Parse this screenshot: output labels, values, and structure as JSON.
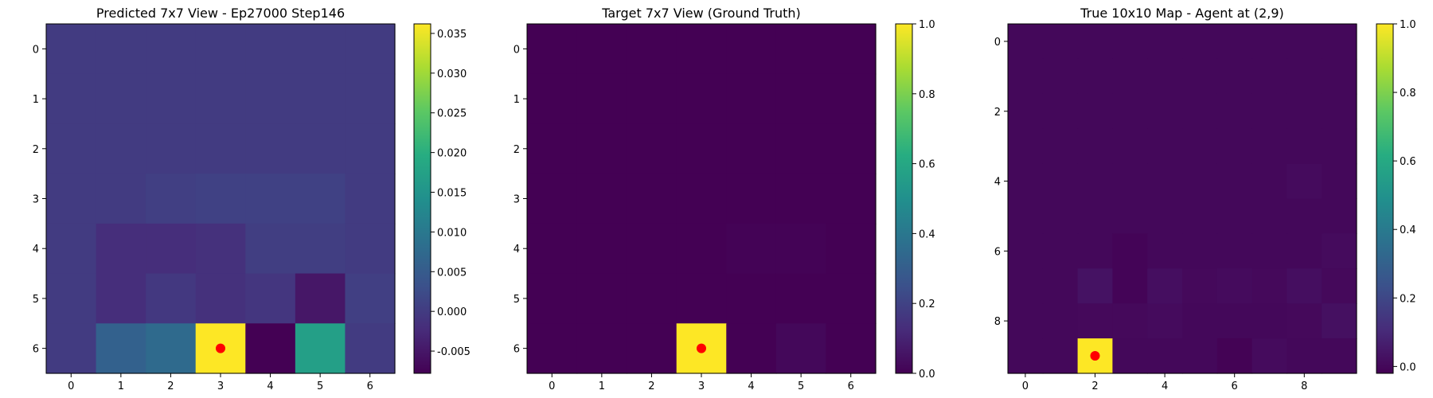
{
  "chart_data": [
    {
      "type": "heatmap",
      "title": "Predicted 7x7 View - Ep27000 Step146",
      "xlabel": "",
      "ylabel": "",
      "size": 7,
      "x_ticks": [
        0,
        1,
        2,
        3,
        4,
        5,
        6
      ],
      "y_ticks": [
        0,
        1,
        2,
        3,
        4,
        5,
        6
      ],
      "colormap": "viridis",
      "vmin": -0.0078,
      "vmax": 0.0362,
      "colorbar_ticks": [
        "-0.005",
        "0.000",
        "0.005",
        "0.010",
        "0.015",
        "0.020",
        "0.025",
        "0.030",
        "0.035"
      ],
      "colorbar_tick_values": [
        -0.005,
        0.0,
        0.005,
        0.01,
        0.015,
        0.02,
        0.025,
        0.03,
        0.035
      ],
      "values": [
        [
          0.0,
          0.0,
          0.0,
          0.0,
          0.0,
          0.0,
          0.0
        ],
        [
          0.0,
          0.0,
          0.0,
          0.0,
          0.0,
          0.0,
          0.0
        ],
        [
          0.0,
          0.0,
          0.0,
          0.0,
          0.0,
          0.0,
          0.0
        ],
        [
          0.0,
          0.0,
          0.0005,
          0.0008,
          0.0008,
          0.0008,
          0.0
        ],
        [
          0.0,
          -0.002,
          -0.002,
          -0.0015,
          0.0004,
          0.0004,
          0.0
        ],
        [
          0.0,
          -0.002,
          -0.0005,
          -0.0015,
          -0.0008,
          -0.005,
          0.0005
        ],
        [
          0.0,
          0.006,
          0.0075,
          0.0362,
          -0.0078,
          0.017,
          0.0
        ]
      ],
      "marker": {
        "x": 3,
        "y": 6,
        "color": "#ff0000"
      }
    },
    {
      "type": "heatmap",
      "title": "Target 7x7 View (Ground Truth)",
      "xlabel": "",
      "ylabel": "",
      "size": 7,
      "x_ticks": [
        0,
        1,
        2,
        3,
        4,
        5,
        6
      ],
      "y_ticks": [
        0,
        1,
        2,
        3,
        4,
        5,
        6
      ],
      "colormap": "viridis",
      "vmin": 0.0,
      "vmax": 1.0,
      "colorbar_ticks": [
        "0.0",
        "0.2",
        "0.4",
        "0.6",
        "0.8",
        "1.0"
      ],
      "colorbar_tick_values": [
        0.0,
        0.2,
        0.4,
        0.6,
        0.8,
        1.0
      ],
      "values": [
        [
          0,
          0,
          0,
          0,
          0,
          0,
          0
        ],
        [
          0,
          0,
          0,
          0,
          0,
          0,
          0
        ],
        [
          0,
          0,
          0,
          0,
          0,
          0,
          0
        ],
        [
          0,
          0,
          0,
          0,
          0,
          0,
          0
        ],
        [
          0,
          0,
          0,
          0,
          0.005,
          0.005,
          0
        ],
        [
          0,
          0,
          0,
          0,
          0,
          0,
          0
        ],
        [
          0,
          0,
          0,
          1.0,
          0,
          0.02,
          0
        ]
      ],
      "marker": {
        "x": 3,
        "y": 6,
        "color": "#ff0000"
      }
    },
    {
      "type": "heatmap",
      "title": "True 10x10 Map - Agent at (2,9)",
      "xlabel": "",
      "ylabel": "",
      "size": 10,
      "x_ticks": [
        0,
        2,
        4,
        6,
        8
      ],
      "y_ticks": [
        0,
        2,
        4,
        6,
        8
      ],
      "colormap": "viridis",
      "vmin": -0.02,
      "vmax": 1.0,
      "colorbar_ticks": [
        "0.0",
        "0.2",
        "0.4",
        "0.6",
        "0.8",
        "1.0"
      ],
      "colorbar_tick_values": [
        0.0,
        0.2,
        0.4,
        0.6,
        0.8,
        1.0
      ],
      "values": [
        [
          0,
          0,
          0,
          0,
          0,
          0,
          0,
          0,
          0,
          0
        ],
        [
          0,
          0,
          0,
          0,
          0,
          0,
          0,
          0,
          0,
          0
        ],
        [
          0,
          0,
          0,
          0,
          0,
          0,
          0,
          0,
          0,
          0
        ],
        [
          0,
          0,
          0,
          0,
          0,
          0,
          0,
          0,
          0,
          0
        ],
        [
          0,
          0,
          0,
          0,
          0,
          0,
          0,
          0,
          0.01,
          0
        ],
        [
          0,
          0,
          0,
          0,
          0,
          0,
          0,
          0,
          0,
          0
        ],
        [
          0,
          0,
          0,
          -0.01,
          0,
          0,
          0,
          0,
          0,
          0.01
        ],
        [
          0,
          0,
          0.03,
          -0.01,
          0.02,
          0.005,
          0.01,
          0.005,
          0.02,
          0.005
        ],
        [
          0,
          0,
          0.005,
          0.005,
          0.01,
          0,
          0,
          0,
          0.005,
          0.025
        ],
        [
          0,
          0,
          1.0,
          0,
          0,
          0,
          -0.015,
          0.01,
          0,
          0
        ]
      ],
      "marker": {
        "x": 2,
        "y": 9,
        "color": "#ff0000"
      }
    }
  ]
}
